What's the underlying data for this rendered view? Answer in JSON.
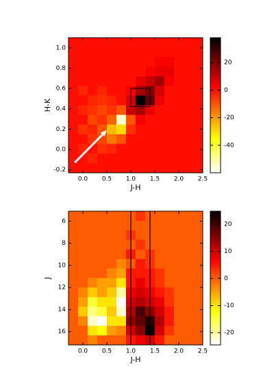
{
  "chart_data": [
    {
      "type": "heatmap",
      "colormap": "hot_r",
      "x_label": "J-H",
      "y_label": "H-K",
      "xlim": [
        -0.3,
        2.5
      ],
      "ylim": [
        -0.23,
        1.1
      ],
      "clim": [
        -60,
        38
      ],
      "xticks": [
        {
          "value": 0,
          "label": "0.0"
        },
        0.5,
        {
          "value": 1,
          "label": "1.0"
        },
        1.5,
        {
          "value": 2,
          "label": "2.0"
        },
        2.5
      ],
      "yticks": [
        {
          "value": -0.2,
          "label": "-0.2"
        },
        {
          "value": 0,
          "label": "0.0"
        },
        0.2,
        0.4,
        0.6,
        0.8,
        {
          "value": 1,
          "label": "1.0"
        }
      ],
      "cticks": [
        -40,
        -20,
        0,
        20
      ],
      "z": [
        [
          0,
          0,
          0,
          0,
          0,
          0,
          0,
          0,
          0,
          0,
          0,
          0,
          0,
          0
        ],
        [
          0,
          0,
          0,
          0,
          0,
          0,
          0,
          0,
          0,
          0,
          0,
          0,
          0,
          0
        ],
        [
          0,
          0,
          0,
          0,
          0,
          0,
          0,
          0,
          0,
          3,
          3,
          0,
          0,
          0
        ],
        [
          0,
          0,
          0,
          0,
          0,
          0,
          0,
          0,
          3,
          5,
          5,
          0,
          0,
          0
        ],
        [
          0,
          0,
          0,
          0,
          0,
          0,
          0,
          5,
          10,
          15,
          3,
          0,
          0,
          0
        ],
        [
          0,
          -3,
          0,
          -3,
          0,
          0,
          3,
          15,
          20,
          8,
          0,
          0,
          0,
          0
        ],
        [
          0,
          0,
          -3,
          -5,
          -3,
          0,
          8,
          38,
          25,
          5,
          0,
          0,
          0,
          0
        ],
        [
          0,
          -3,
          -5,
          -8,
          -5,
          -10,
          10,
          15,
          5,
          0,
          0,
          0,
          0,
          0
        ],
        [
          0,
          0,
          -8,
          -5,
          -12,
          -55,
          -10,
          3,
          0,
          0,
          0,
          0,
          0,
          0
        ],
        [
          0,
          -5,
          -3,
          -10,
          -25,
          -30,
          -5,
          0,
          0,
          0,
          0,
          0,
          0,
          0
        ],
        [
          0,
          0,
          -5,
          -8,
          -15,
          -10,
          0,
          0,
          0,
          0,
          0,
          0,
          0,
          0
        ],
        [
          0,
          -3,
          0,
          -5,
          -3,
          0,
          0,
          0,
          0,
          0,
          0,
          0,
          0,
          0
        ],
        [
          0,
          0,
          -3,
          0,
          0,
          0,
          0,
          0,
          0,
          0,
          0,
          0,
          0,
          0
        ],
        [
          0,
          0,
          0,
          0,
          0,
          0,
          0,
          0,
          0,
          0,
          0,
          0,
          0,
          0
        ]
      ],
      "shapes": [
        {
          "kind": "rect",
          "color": "#000000",
          "x": [
            1.0,
            1.4
          ],
          "y": [
            0.42,
            0.6
          ]
        },
        {
          "kind": "arrow",
          "color": "#ffffff",
          "x": [
            -0.17,
            0.5
          ],
          "y": [
            -0.13,
            0.19
          ]
        }
      ]
    },
    {
      "type": "heatmap",
      "colormap": "hot_r",
      "x_label": "J-H",
      "y_label": "J",
      "xlim": [
        -0.3,
        2.5
      ],
      "ylim": [
        17.2,
        5.1
      ],
      "clim": [
        -24.5,
        24.8
      ],
      "xticks": [
        {
          "value": 0,
          "label": "0.0"
        },
        0.5,
        {
          "value": 1,
          "label": "1.0"
        },
        1.5,
        {
          "value": 2,
          "label": "2.0"
        },
        2.5
      ],
      "yticks": [
        6,
        8,
        10,
        12,
        14,
        16
      ],
      "cticks": [
        -20,
        -10,
        0,
        10,
        20
      ],
      "z": [
        [
          0,
          0,
          0,
          0,
          0,
          0,
          0,
          3,
          0,
          0,
          0,
          0,
          0,
          0
        ],
        [
          0,
          0,
          0,
          0,
          0,
          0,
          0,
          0,
          0,
          0,
          0,
          0,
          0,
          0
        ],
        [
          0,
          0,
          0,
          0,
          0,
          0,
          3,
          0,
          0,
          0,
          0,
          0,
          0,
          0
        ],
        [
          0,
          0,
          0,
          0,
          0,
          0,
          0,
          3,
          0,
          0,
          0,
          0,
          0,
          0
        ],
        [
          0,
          0,
          0,
          0,
          0,
          0,
          5,
          0,
          3,
          0,
          0,
          0,
          0,
          0
        ],
        [
          0,
          0,
          0,
          0,
          0,
          -3,
          0,
          5,
          3,
          0,
          0,
          0,
          0,
          0
        ],
        [
          0,
          0,
          0,
          0,
          -3,
          -5,
          5,
          5,
          5,
          3,
          0,
          0,
          0,
          0
        ],
        [
          0,
          0,
          -3,
          -5,
          -5,
          -10,
          5,
          8,
          5,
          3,
          0,
          0,
          0,
          0
        ],
        [
          0,
          -3,
          -8,
          -5,
          -8,
          -20,
          8,
          10,
          8,
          5,
          3,
          0,
          0,
          0
        ],
        [
          0,
          -5,
          -15,
          -10,
          -10,
          -25,
          10,
          12,
          10,
          8,
          3,
          0,
          0,
          0
        ],
        [
          0,
          -8,
          -18,
          -15,
          -8,
          -22,
          12,
          20,
          15,
          10,
          5,
          0,
          0,
          0
        ],
        [
          0,
          -3,
          -22,
          -25,
          -10,
          -10,
          15,
          18,
          22,
          12,
          5,
          0,
          0,
          0
        ],
        [
          0,
          0,
          -10,
          -12,
          -5,
          -3,
          10,
          15,
          25,
          10,
          3,
          0,
          0,
          0
        ],
        [
          0,
          0,
          -3,
          0,
          0,
          0,
          5,
          8,
          10,
          5,
          0,
          0,
          0,
          0
        ]
      ],
      "shapes": [
        {
          "kind": "vline",
          "color": "#000000",
          "x": 1.0
        },
        {
          "kind": "vline",
          "color": "#000000",
          "x": 1.4
        }
      ]
    }
  ]
}
